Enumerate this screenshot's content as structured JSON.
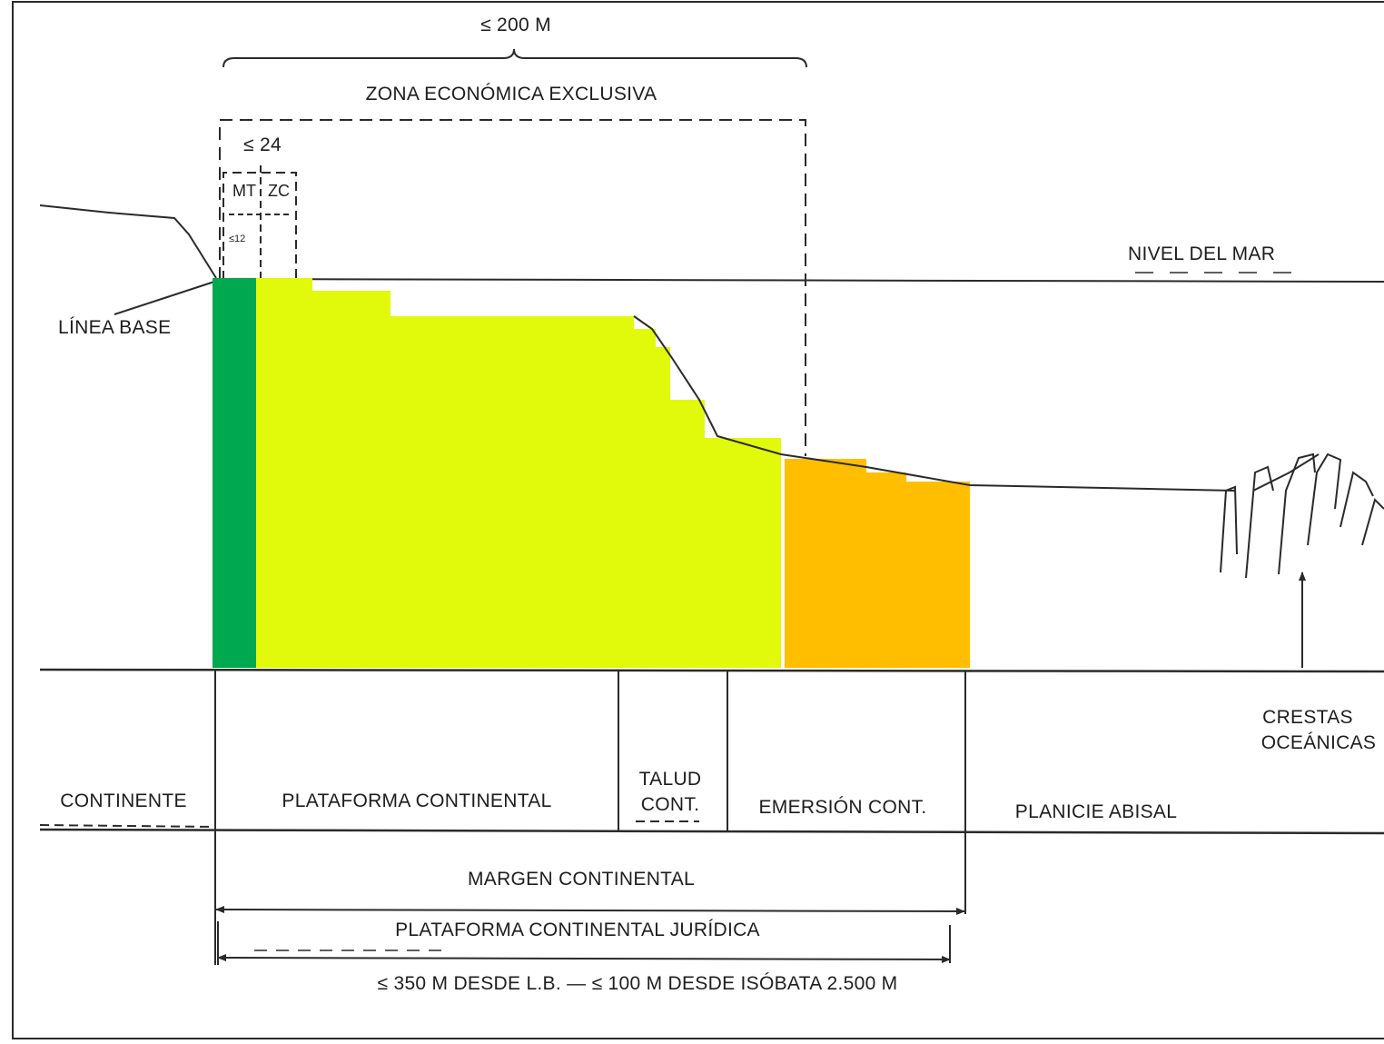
{
  "top_range": "≤ 200 M",
  "eez_label": "ZONA ECONÓMICA EXCLUSIVA",
  "contiguous_range": "≤ 24",
  "mt_label": "MT",
  "zc_label": "ZC",
  "territorial_range": "≤12",
  "sea_level": "NIVEL DEL MAR",
  "baseline": "LÍNEA BASE",
  "zones": {
    "continente": "CONTINENTE",
    "plataforma": "PLATAFORMA CONTINENTAL",
    "talud_line1": "TALUD",
    "talud_line2": "CONT.",
    "emersion": "EMERSIÓN CONT.",
    "planicie": "PLANICIE ABISAL"
  },
  "crestas_line1": "CRESTAS",
  "crestas_line2": "OCEÁNICAS",
  "margen": "MARGEN CONTINENTAL",
  "plataforma_juridica": "PLATAFORMA CONTINENTAL JURÍDICA",
  "limit_note": "≤ 350 M DESDE L.B. — ≤ 100 M DESDE ISÓBATA 2.500 M",
  "colors": {
    "territorial_sea": "#00a84f",
    "shelf": "#e1fa0b",
    "rise": "#ffbf00",
    "ink": "#2a2a2a"
  }
}
